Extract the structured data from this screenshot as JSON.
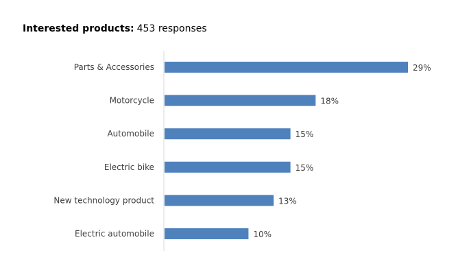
{
  "title": {
    "bold": "Interested products:",
    "rest": "453 responses"
  },
  "chart_data": {
    "type": "bar",
    "orientation": "horizontal",
    "categories": [
      "Parts & Accessories",
      "Motorcycle",
      "Automobile",
      "Electric bike",
      "New technology product",
      "Electric automobile"
    ],
    "values": [
      29,
      18,
      15,
      15,
      13,
      10
    ],
    "value_labels": [
      "29%",
      "18%",
      "15%",
      "15%",
      "13%",
      "10%"
    ],
    "unit": "%",
    "xlim": [
      0,
      29
    ],
    "bar_color": "#4f81bd",
    "axis_color": "#d9d9d9",
    "grid": false,
    "legend": "none"
  }
}
